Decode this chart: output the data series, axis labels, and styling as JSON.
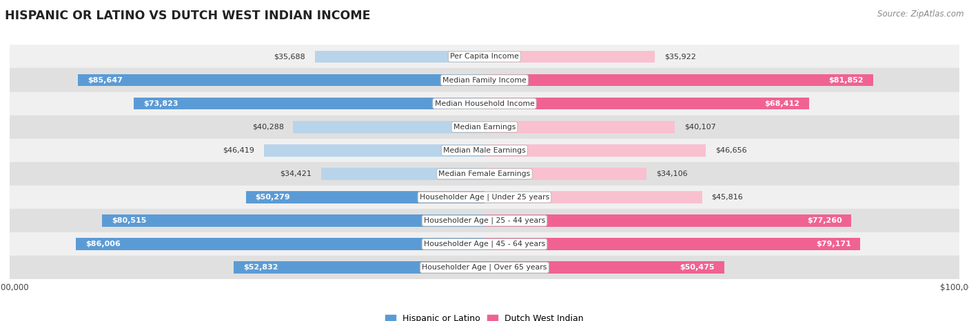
{
  "title": "HISPANIC OR LATINO VS DUTCH WEST INDIAN INCOME",
  "source": "Source: ZipAtlas.com",
  "categories": [
    "Per Capita Income",
    "Median Family Income",
    "Median Household Income",
    "Median Earnings",
    "Median Male Earnings",
    "Median Female Earnings",
    "Householder Age | Under 25 years",
    "Householder Age | 25 - 44 years",
    "Householder Age | 45 - 64 years",
    "Householder Age | Over 65 years"
  ],
  "hispanic_values": [
    35688,
    85647,
    73823,
    40288,
    46419,
    34421,
    50279,
    80515,
    86006,
    52832
  ],
  "dutch_values": [
    35922,
    81852,
    68412,
    40107,
    46656,
    34106,
    45816,
    77260,
    79171,
    50475
  ],
  "hispanic_labels": [
    "$35,688",
    "$85,647",
    "$73,823",
    "$40,288",
    "$46,419",
    "$34,421",
    "$50,279",
    "$80,515",
    "$86,006",
    "$52,832"
  ],
  "dutch_labels": [
    "$35,922",
    "$81,852",
    "$68,412",
    "$40,107",
    "$46,656",
    "$34,106",
    "$45,816",
    "$77,260",
    "$79,171",
    "$50,475"
  ],
  "max_value": 100000,
  "hispanic_color_light": "#b8d4ea",
  "hispanic_color_dark": "#5b9bd5",
  "dutch_color_light": "#f9c0d0",
  "dutch_color_dark": "#f06292",
  "row_bg_even": "#f0f0f0",
  "row_bg_odd": "#e0e0e0",
  "bar_height": 0.52,
  "threshold": 50000,
  "legend_hispanic": "Hispanic or Latino",
  "legend_dutch": "Dutch West Indian"
}
